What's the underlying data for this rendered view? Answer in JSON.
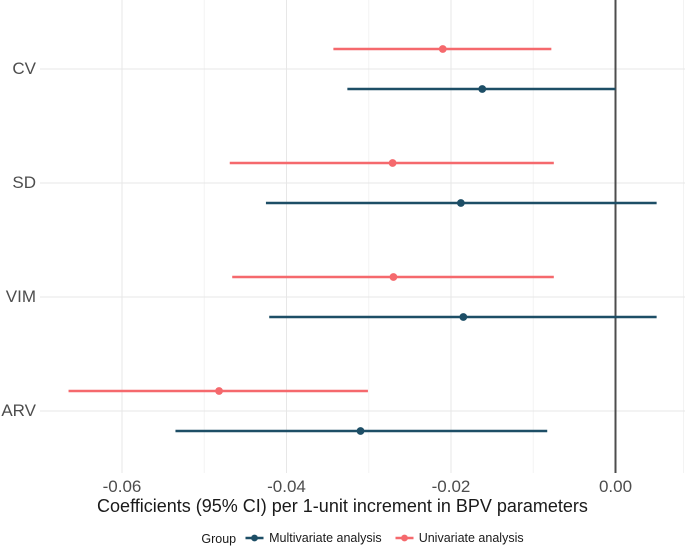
{
  "chart_data": {
    "type": "scatter",
    "variant": "forest-plot (point estimate with 95% CI horizontal error bars)",
    "title": "",
    "xlabel": "Coefficients (95% CI) per 1-unit increment in BPV parameters",
    "ylabel": "",
    "categories": [
      "CV",
      "SD",
      "VIM",
      "ARV"
    ],
    "x_ticks": [
      -0.06,
      -0.04,
      -0.02,
      0
    ],
    "x_tick_labels": [
      "-0.06",
      "-0.04",
      "-0.02",
      "0.00"
    ],
    "x_minor_ticks": [
      -0.05,
      -0.03,
      -0.01
    ],
    "xlim": [
      -0.07,
      0.0085
    ],
    "reference_line_x": 0,
    "grid": true,
    "legend": {
      "title": "Group",
      "position": "bottom"
    },
    "series": [
      {
        "name": "Multivariate analysis",
        "color": "#1D4E66",
        "points": [
          {
            "category": "CV",
            "estimate": -0.0162,
            "ci_low": -0.0326,
            "ci_high": 0.0
          },
          {
            "category": "SD",
            "estimate": -0.0188,
            "ci_low": -0.0425,
            "ci_high": 0.005
          },
          {
            "category": "VIM",
            "estimate": -0.0185,
            "ci_low": -0.0421,
            "ci_high": 0.005
          },
          {
            "category": "ARV",
            "estimate": -0.031,
            "ci_low": -0.0535,
            "ci_high": -0.0083
          }
        ]
      },
      {
        "name": "Univariate analysis",
        "color": "#F5696D",
        "points": [
          {
            "category": "CV",
            "estimate": -0.021,
            "ci_low": -0.0343,
            "ci_high": -0.0078
          },
          {
            "category": "SD",
            "estimate": -0.0271,
            "ci_low": -0.0469,
            "ci_high": -0.0075
          },
          {
            "category": "VIM",
            "estimate": -0.027,
            "ci_low": -0.0466,
            "ci_high": -0.0075
          },
          {
            "category": "ARV",
            "estimate": -0.0482,
            "ci_low": -0.0665,
            "ci_high": -0.0301
          }
        ]
      }
    ],
    "colors": {
      "grid_major": "#e7e7e7",
      "grid_minor": "#f3f3f3",
      "zero_line": "#4d4d4d",
      "axis_text": "#4d4d4d",
      "axis_title_text": "#1a1a1a",
      "background": "#ffffff"
    }
  }
}
